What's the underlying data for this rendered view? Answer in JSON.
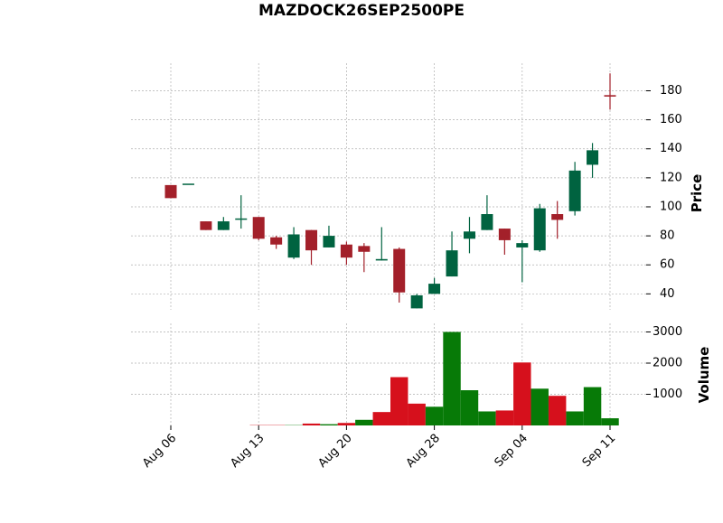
{
  "chart_data": {
    "type": "candlestick",
    "title": "MAZDOCK26SEP2500PE",
    "categories": [
      "Aug 06",
      null,
      null,
      null,
      null,
      "Aug 13",
      null,
      null,
      null,
      null,
      "Aug 20",
      null,
      null,
      null,
      null,
      "Aug 28",
      null,
      null,
      null,
      null,
      "Sep 04",
      null,
      null,
      null,
      null,
      "Sep 11"
    ],
    "open": [
      115,
      116,
      90,
      84,
      92,
      93,
      79,
      65,
      84,
      72,
      74,
      73,
      63,
      71,
      30,
      40,
      52,
      78,
      84,
      85,
      72,
      70,
      95,
      97,
      129,
      177
    ],
    "high": [
      115,
      116,
      90,
      93,
      108,
      93,
      80,
      86,
      84,
      87,
      76,
      75,
      86,
      72,
      40,
      51,
      83,
      93,
      108,
      85,
      77,
      102,
      104,
      131,
      144,
      192
    ],
    "low": [
      106,
      116,
      84,
      84,
      85,
      77,
      71,
      64,
      60,
      72,
      60,
      55,
      63,
      34,
      30,
      40,
      52,
      68,
      84,
      67,
      48,
      69,
      78,
      94,
      120,
      167
    ],
    "close": [
      106,
      116,
      84,
      90,
      92,
      78,
      74,
      81,
      70,
      80,
      65,
      69,
      64,
      41,
      39,
      47,
      70,
      83,
      95,
      77,
      75,
      99,
      91,
      125,
      139,
      176
    ],
    "up_color": "#006340",
    "down_color": "#a3202a",
    "ylabel": "Price",
    "ylim": [
      29,
      199
    ],
    "yticks": [
      40,
      60,
      80,
      100,
      120,
      140,
      160,
      180
    ],
    "grid": true,
    "volume": {
      "ylabel": "Volume",
      "values": [
        0,
        0,
        0,
        0,
        0,
        10,
        10,
        10,
        60,
        40,
        80,
        180,
        430,
        1550,
        700,
        600,
        3000,
        1130,
        450,
        480,
        2020,
        1180,
        950,
        450,
        1230,
        230
      ],
      "colors": [
        "#077a07",
        "#077a07",
        "#077a07",
        "#077a07",
        "#077a07",
        "#d6101c",
        "#d6101c",
        "#077a07",
        "#d6101c",
        "#077a07",
        "#d6101c",
        "#077a07",
        "#d6101c",
        "#d6101c",
        "#d6101c",
        "#077a07",
        "#077a07",
        "#077a07",
        "#077a07",
        "#d6101c",
        "#d6101c",
        "#077a07",
        "#d6101c",
        "#077a07",
        "#077a07",
        "#077a07"
      ],
      "ylim": [
        0,
        3275
      ],
      "yticks": [
        1000,
        2000,
        3000
      ]
    }
  }
}
